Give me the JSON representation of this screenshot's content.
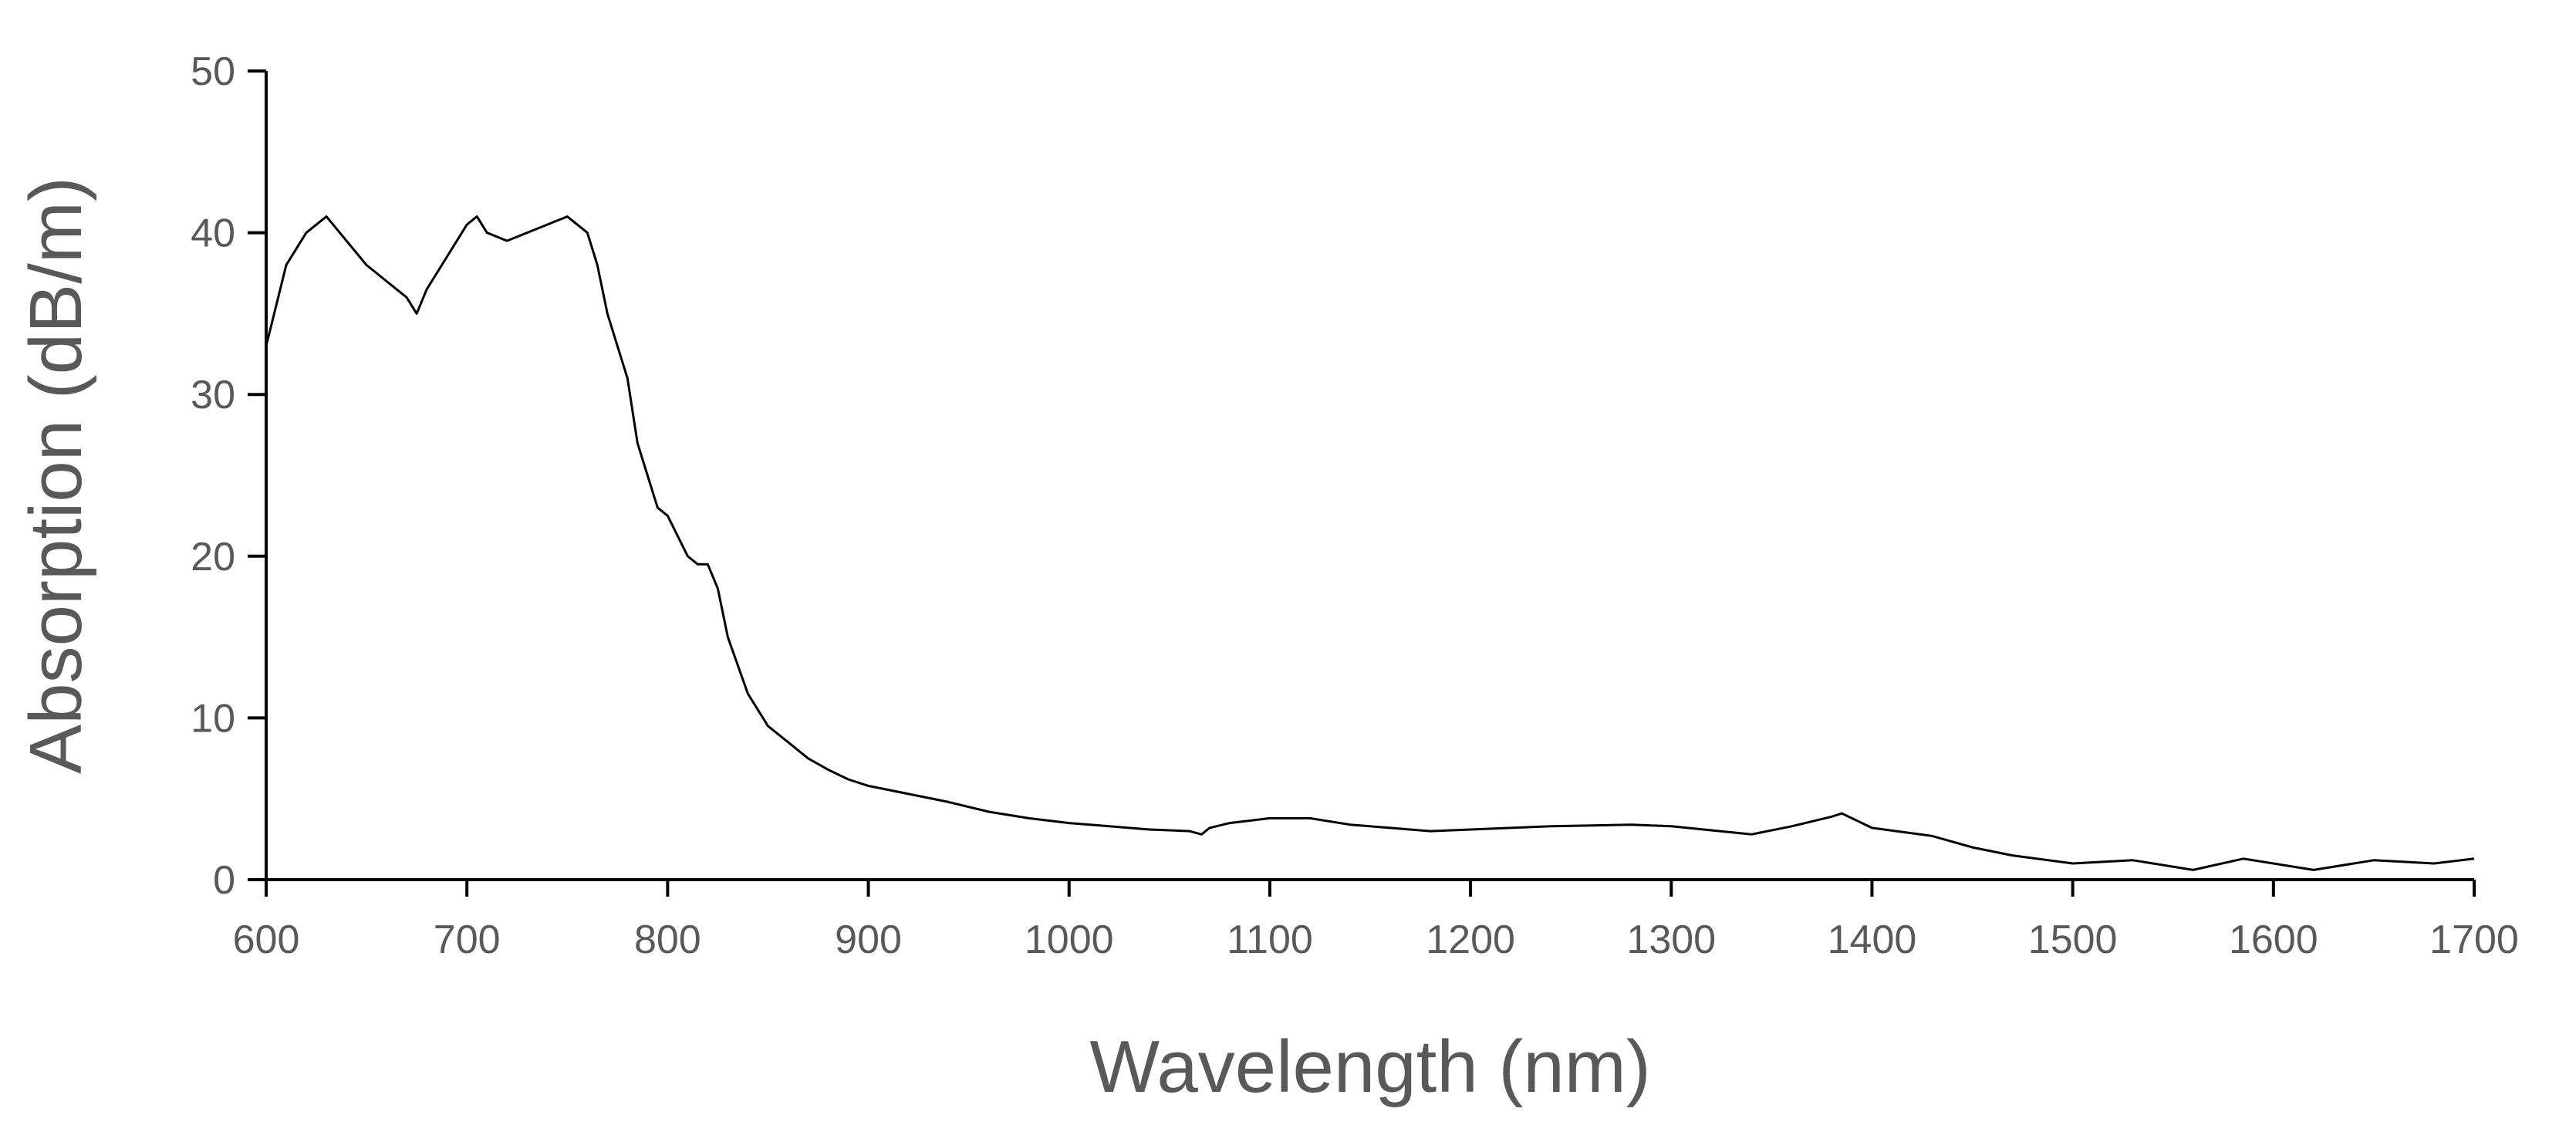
{
  "chart_data": {
    "type": "line",
    "title": "",
    "xlabel": "Wavelength (nm)",
    "ylabel": "Absorption (dB/m)",
    "xlim": [
      600,
      1700
    ],
    "ylim": [
      0,
      50
    ],
    "x_ticks": [
      600,
      700,
      800,
      900,
      1000,
      1100,
      1200,
      1300,
      1400,
      1500,
      1600,
      1700
    ],
    "y_ticks": [
      0,
      10,
      20,
      30,
      40,
      50
    ],
    "x_tick_labels": [
      "600",
      "700",
      "800",
      "900",
      "1000",
      "1100",
      "1200",
      "1300",
      "1400",
      "1500",
      "1600",
      "1700"
    ],
    "y_tick_labels": [
      "0",
      "10",
      "20",
      "30",
      "40",
      "50"
    ],
    "grid": false,
    "legend": "none",
    "line_color": "#000000",
    "axis_color": "#000000",
    "label_color": "#595959",
    "series": [
      {
        "name": "Absorption",
        "x": [
          600,
          610,
          620,
          630,
          640,
          650,
          660,
          670,
          675,
          680,
          690,
          700,
          705,
          710,
          720,
          730,
          740,
          750,
          760,
          765,
          770,
          775,
          780,
          785,
          790,
          795,
          800,
          810,
          815,
          820,
          825,
          830,
          840,
          850,
          860,
          870,
          880,
          890,
          900,
          920,
          940,
          960,
          980,
          1000,
          1020,
          1040,
          1060,
          1066,
          1070,
          1080,
          1100,
          1120,
          1140,
          1160,
          1180,
          1200,
          1240,
          1280,
          1300,
          1340,
          1360,
          1380,
          1385,
          1400,
          1430,
          1450,
          1470,
          1500,
          1530,
          1560,
          1585,
          1620,
          1650,
          1680,
          1700
        ],
        "y": [
          33,
          38,
          40,
          41,
          39.5,
          38,
          37,
          36,
          35,
          36.5,
          38.5,
          40.5,
          41,
          40,
          39.5,
          40,
          40.5,
          41,
          40,
          38,
          35,
          33,
          31,
          27,
          25,
          23,
          22.5,
          20,
          19.5,
          19.5,
          18,
          15,
          11.5,
          9.5,
          8.5,
          7.5,
          6.8,
          6.2,
          5.8,
          5.3,
          4.8,
          4.2,
          3.8,
          3.5,
          3.3,
          3.1,
          3,
          2.8,
          3.2,
          3.5,
          3.8,
          3.8,
          3.4,
          3.2,
          3,
          3.1,
          3.3,
          3.4,
          3.3,
          2.8,
          3.3,
          3.9,
          4.1,
          3.2,
          2.7,
          2,
          1.5,
          1,
          1.2,
          0.6,
          1.3,
          0.6,
          1.2,
          1,
          1.3
        ]
      }
    ]
  }
}
